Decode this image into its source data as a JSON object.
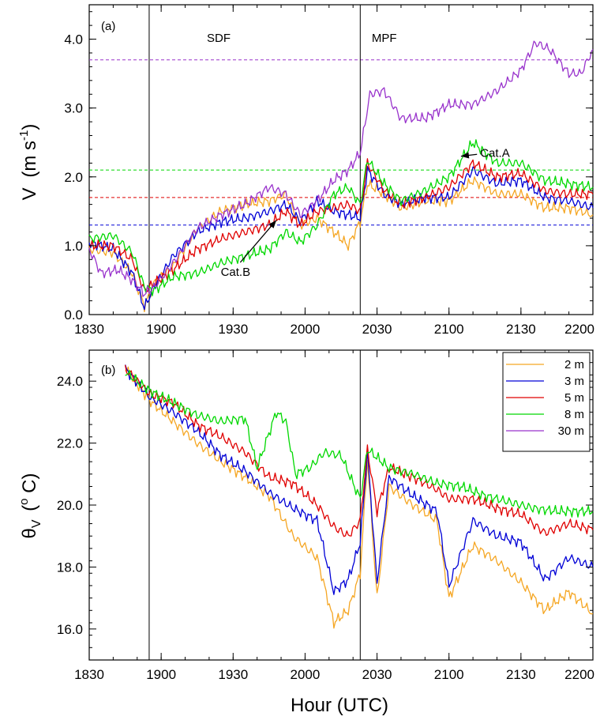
{
  "chart_data": [
    {
      "panel_label": "(a)",
      "type": "line",
      "ylabel_main": "V",
      "ylabel_unit": "(m s",
      "ylabel_exp": "-1",
      "ylabel_close": ")",
      "xlim": [
        "18:30",
        "22:00"
      ],
      "ylim": [
        0,
        4.5
      ],
      "yticks": [
        0,
        1,
        2,
        3,
        4
      ],
      "ytick_labels": [
        "0.0",
        "1.0",
        "2.0",
        "3.0",
        "4.0"
      ],
      "xtick_labels": [
        "1830",
        "1900",
        "1930",
        "2000",
        "2030",
        "2100",
        "2130",
        "2200"
      ],
      "vertical_lines": [
        "18:55",
        "20:23"
      ],
      "regions": [
        {
          "label": "SDF",
          "x": "19:24"
        },
        {
          "label": "MPF",
          "x": "20:33"
        }
      ],
      "thresholds": [
        {
          "series": "30 m",
          "y": 3.7
        },
        {
          "series": "8 m",
          "y": 2.1
        },
        {
          "series": "5 m",
          "y": 1.7
        },
        {
          "series": "3 m",
          "y": 1.3
        }
      ],
      "annotations": [
        {
          "text": "Cat.A",
          "x": "21:13",
          "y": 2.35,
          "arrow_to_x": "21:05",
          "arrow_to_y": 2.3
        },
        {
          "text": "Cat.B",
          "x": "19:31",
          "y": 0.62,
          "arrow_to_x": "19:48",
          "arrow_to_y": 1.37
        }
      ],
      "series": [
        {
          "name": "2 m",
          "color": "#f5a623",
          "points": [
            [
              "18:30",
              0.95
            ],
            [
              "18:40",
              0.9
            ],
            [
              "18:48",
              0.6
            ],
            [
              "18:53",
              0.12
            ],
            [
              "18:57",
              0.45
            ],
            [
              "19:05",
              0.7
            ],
            [
              "19:15",
              1.25
            ],
            [
              "19:25",
              1.5
            ],
            [
              "19:35",
              1.6
            ],
            [
              "19:45",
              1.65
            ],
            [
              "19:52",
              1.75
            ],
            [
              "19:58",
              1.3
            ],
            [
              "20:05",
              1.4
            ],
            [
              "20:12",
              1.2
            ],
            [
              "20:18",
              1.0
            ],
            [
              "20:23",
              1.35
            ],
            [
              "20:26",
              1.9
            ],
            [
              "20:33",
              1.75
            ],
            [
              "20:40",
              1.55
            ],
            [
              "20:50",
              1.65
            ],
            [
              "21:00",
              1.65
            ],
            [
              "21:10",
              1.95
            ],
            [
              "21:20",
              1.75
            ],
            [
              "21:30",
              1.75
            ],
            [
              "21:40",
              1.55
            ],
            [
              "21:50",
              1.55
            ],
            [
              "22:00",
              1.45
            ]
          ]
        },
        {
          "name": "3 m",
          "color": "#0000d6",
          "points": [
            [
              "18:30",
              1.05
            ],
            [
              "18:40",
              0.95
            ],
            [
              "18:48",
              0.6
            ],
            [
              "18:53",
              0.1
            ],
            [
              "18:57",
              0.4
            ],
            [
              "19:05",
              0.85
            ],
            [
              "19:15",
              1.2
            ],
            [
              "19:25",
              1.35
            ],
            [
              "19:35",
              1.4
            ],
            [
              "19:45",
              1.5
            ],
            [
              "19:52",
              1.6
            ],
            [
              "19:58",
              1.35
            ],
            [
              "20:05",
              1.65
            ],
            [
              "20:12",
              1.5
            ],
            [
              "20:18",
              1.45
            ],
            [
              "20:23",
              1.4
            ],
            [
              "20:26",
              2.1
            ],
            [
              "20:33",
              1.75
            ],
            [
              "20:40",
              1.6
            ],
            [
              "20:50",
              1.7
            ],
            [
              "21:00",
              1.7
            ],
            [
              "21:10",
              2.1
            ],
            [
              "21:20",
              1.9
            ],
            [
              "21:30",
              1.95
            ],
            [
              "21:40",
              1.7
            ],
            [
              "21:50",
              1.65
            ],
            [
              "22:00",
              1.55
            ]
          ]
        },
        {
          "name": "5 m",
          "color": "#e00000",
          "points": [
            [
              "18:30",
              1.0
            ],
            [
              "18:40",
              1.0
            ],
            [
              "18:48",
              0.8
            ],
            [
              "18:53",
              0.35
            ],
            [
              "18:57",
              0.45
            ],
            [
              "19:05",
              0.65
            ],
            [
              "19:15",
              0.95
            ],
            [
              "19:25",
              1.1
            ],
            [
              "19:35",
              1.2
            ],
            [
              "19:45",
              1.3
            ],
            [
              "19:52",
              1.5
            ],
            [
              "19:58",
              1.3
            ],
            [
              "20:05",
              1.5
            ],
            [
              "20:12",
              1.55
            ],
            [
              "20:18",
              1.6
            ],
            [
              "20:23",
              1.5
            ],
            [
              "20:26",
              2.2
            ],
            [
              "20:33",
              1.8
            ],
            [
              "20:40",
              1.6
            ],
            [
              "20:50",
              1.7
            ],
            [
              "21:00",
              1.85
            ],
            [
              "21:10",
              2.2
            ],
            [
              "21:20",
              2.0
            ],
            [
              "21:30",
              2.05
            ],
            [
              "21:40",
              1.8
            ],
            [
              "21:50",
              1.75
            ],
            [
              "22:00",
              1.75
            ]
          ]
        },
        {
          "name": "8 m",
          "color": "#00d800",
          "points": [
            [
              "18:30",
              1.1
            ],
            [
              "18:40",
              1.15
            ],
            [
              "18:48",
              0.9
            ],
            [
              "18:53",
              0.4
            ],
            [
              "18:57",
              0.35
            ],
            [
              "19:05",
              0.55
            ],
            [
              "19:15",
              0.6
            ],
            [
              "19:25",
              0.75
            ],
            [
              "19:35",
              0.85
            ],
            [
              "19:45",
              0.95
            ],
            [
              "19:52",
              1.2
            ],
            [
              "19:58",
              1.05
            ],
            [
              "20:05",
              1.3
            ],
            [
              "20:12",
              1.75
            ],
            [
              "20:18",
              1.85
            ],
            [
              "20:23",
              1.6
            ],
            [
              "20:26",
              2.25
            ],
            [
              "20:33",
              1.9
            ],
            [
              "20:40",
              1.65
            ],
            [
              "20:50",
              1.8
            ],
            [
              "21:00",
              2.0
            ],
            [
              "21:10",
              2.5
            ],
            [
              "21:20",
              2.2
            ],
            [
              "21:30",
              2.2
            ],
            [
              "21:40",
              1.95
            ],
            [
              "21:50",
              1.9
            ],
            [
              "22:00",
              1.85
            ]
          ]
        },
        {
          "name": "30 m",
          "color": "#9933cc",
          "points": [
            [
              "18:30",
              0.95
            ],
            [
              "18:35",
              0.6
            ],
            [
              "18:42",
              0.65
            ],
            [
              "18:48",
              0.5
            ],
            [
              "18:53",
              0.3
            ],
            [
              "18:57",
              0.4
            ],
            [
              "19:05",
              0.75
            ],
            [
              "19:15",
              1.25
            ],
            [
              "19:25",
              1.45
            ],
            [
              "19:35",
              1.6
            ],
            [
              "19:45",
              1.85
            ],
            [
              "19:52",
              1.75
            ],
            [
              "19:58",
              1.45
            ],
            [
              "20:05",
              1.65
            ],
            [
              "20:12",
              1.95
            ],
            [
              "20:18",
              2.1
            ],
            [
              "20:23",
              2.35
            ],
            [
              "20:27",
              3.2
            ],
            [
              "20:33",
              3.25
            ],
            [
              "20:40",
              2.85
            ],
            [
              "20:50",
              2.85
            ],
            [
              "21:00",
              3.05
            ],
            [
              "21:10",
              3.05
            ],
            [
              "21:20",
              3.25
            ],
            [
              "21:30",
              3.55
            ],
            [
              "21:36",
              3.95
            ],
            [
              "21:42",
              3.85
            ],
            [
              "21:50",
              3.5
            ],
            [
              "21:55",
              3.5
            ],
            [
              "22:00",
              3.85
            ]
          ]
        }
      ]
    },
    {
      "panel_label": "(b)",
      "type": "line",
      "ylabel_main": "θ",
      "ylabel_sub": "V",
      "ylabel_unit": "(",
      "ylabel_deg": "o",
      "ylabel_close": " C)",
      "xlabel": "Hour (UTC)",
      "xlim": [
        "18:30",
        "22:00"
      ],
      "ylim": [
        15,
        25
      ],
      "yticks": [
        16,
        18,
        20,
        22,
        24
      ],
      "ytick_labels": [
        "16.0",
        "18.0",
        "20.0",
        "22.0",
        "24.0"
      ],
      "xtick_labels": [
        "1830",
        "1900",
        "1930",
        "2000",
        "2030",
        "2100",
        "2130",
        "2200"
      ],
      "vertical_lines": [
        "18:55",
        "20:23"
      ],
      "legend_position": "top-right",
      "series": [
        {
          "name": "2 m",
          "color": "#f5a623",
          "points": [
            [
              "18:45",
              24.4
            ],
            [
              "18:55",
              23.4
            ],
            [
              "19:05",
              22.7
            ],
            [
              "19:15",
              22.0
            ],
            [
              "19:25",
              21.4
            ],
            [
              "19:35",
              20.9
            ],
            [
              "19:45",
              20.3
            ],
            [
              "19:55",
              19.0
            ],
            [
              "20:05",
              18.3
            ],
            [
              "20:12",
              16.2
            ],
            [
              "20:18",
              16.6
            ],
            [
              "20:23",
              17.8
            ],
            [
              "20:26",
              21.5
            ],
            [
              "20:30",
              17.0
            ],
            [
              "20:35",
              20.6
            ],
            [
              "20:45",
              20.0
            ],
            [
              "20:55",
              19.5
            ],
            [
              "21:00",
              17.0
            ],
            [
              "21:10",
              18.7
            ],
            [
              "21:20",
              18.2
            ],
            [
              "21:30",
              17.5
            ],
            [
              "21:40",
              16.6
            ],
            [
              "21:50",
              17.2
            ],
            [
              "22:00",
              16.5
            ]
          ]
        },
        {
          "name": "3 m",
          "color": "#0000d6",
          "points": [
            [
              "18:45",
              24.4
            ],
            [
              "18:55",
              23.5
            ],
            [
              "19:05",
              23.0
            ],
            [
              "19:15",
              22.4
            ],
            [
              "19:25",
              21.6
            ],
            [
              "19:35",
              21.1
            ],
            [
              "19:45",
              20.4
            ],
            [
              "19:55",
              19.9
            ],
            [
              "20:05",
              19.5
            ],
            [
              "20:12",
              17.2
            ],
            [
              "20:18",
              17.6
            ],
            [
              "20:23",
              18.8
            ],
            [
              "20:26",
              21.7
            ],
            [
              "20:30",
              17.5
            ],
            [
              "20:35",
              20.9
            ],
            [
              "20:45",
              20.3
            ],
            [
              "20:55",
              19.8
            ],
            [
              "21:00",
              17.4
            ],
            [
              "21:10",
              19.5
            ],
            [
              "21:20",
              19.0
            ],
            [
              "21:30",
              18.8
            ],
            [
              "21:40",
              17.6
            ],
            [
              "21:50",
              18.3
            ],
            [
              "22:00",
              18.0
            ]
          ]
        },
        {
          "name": "5 m",
          "color": "#e00000",
          "points": [
            [
              "18:45",
              24.4
            ],
            [
              "18:55",
              23.6
            ],
            [
              "19:05",
              23.3
            ],
            [
              "19:15",
              22.6
            ],
            [
              "19:25",
              22.2
            ],
            [
              "19:35",
              21.7
            ],
            [
              "19:45",
              20.9
            ],
            [
              "19:55",
              20.7
            ],
            [
              "20:05",
              20.0
            ],
            [
              "20:12",
              19.3
            ],
            [
              "20:18",
              19.0
            ],
            [
              "20:23",
              19.5
            ],
            [
              "20:26",
              21.8
            ],
            [
              "20:30",
              19.8
            ],
            [
              "20:35",
              21.2
            ],
            [
              "20:45",
              20.9
            ],
            [
              "20:55",
              20.5
            ],
            [
              "21:00",
              20.2
            ],
            [
              "21:10",
              20.2
            ],
            [
              "21:20",
              19.9
            ],
            [
              "21:30",
              19.7
            ],
            [
              "21:40",
              19.1
            ],
            [
              "21:50",
              19.4
            ],
            [
              "22:00",
              19.2
            ]
          ]
        },
        {
          "name": "8 m",
          "color": "#00d800",
          "points": [
            [
              "18:45",
              24.3
            ],
            [
              "18:55",
              23.7
            ],
            [
              "19:05",
              23.3
            ],
            [
              "19:15",
              22.9
            ],
            [
              "19:25",
              22.7
            ],
            [
              "19:35",
              22.8
            ],
            [
              "19:40",
              21.2
            ],
            [
              "19:48",
              23.0
            ],
            [
              "19:52",
              22.7
            ],
            [
              "19:56",
              21.0
            ],
            [
              "20:02",
              21.2
            ],
            [
              "20:08",
              21.7
            ],
            [
              "20:15",
              21.6
            ],
            [
              "20:20",
              20.7
            ],
            [
              "20:23",
              20.2
            ],
            [
              "20:26",
              21.8
            ],
            [
              "20:35",
              21.2
            ],
            [
              "20:45",
              21.0
            ],
            [
              "20:55",
              20.7
            ],
            [
              "21:05",
              20.6
            ],
            [
              "21:15",
              20.3
            ],
            [
              "21:25",
              20.1
            ],
            [
              "21:35",
              19.9
            ],
            [
              "21:45",
              19.8
            ],
            [
              "22:00",
              19.8
            ]
          ]
        }
      ]
    }
  ]
}
